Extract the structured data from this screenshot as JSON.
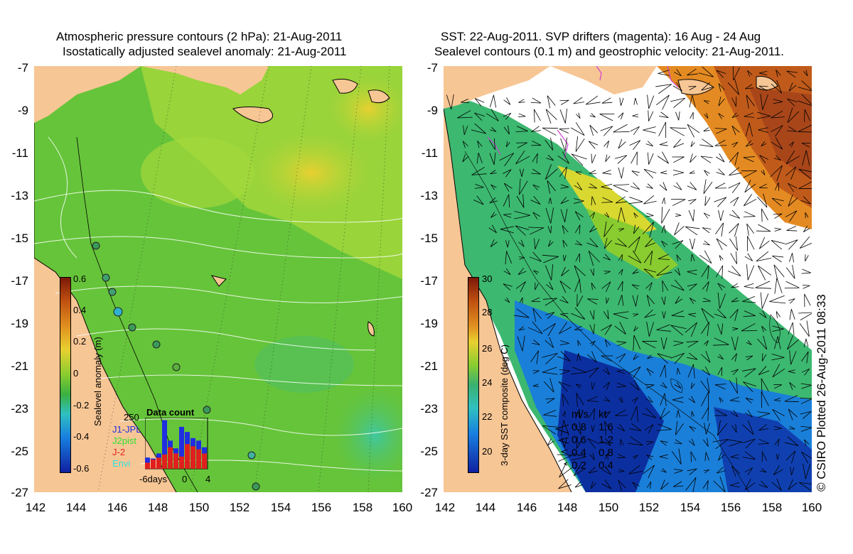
{
  "left_panel": {
    "title_line1": "Atmospheric pressure contours (2 hPa): 21-Aug-2011",
    "title_line2": "Isostatically adjusted sealevel anomaly: 21-Aug-2011",
    "colorbar": {
      "label": "Sealevel anomaly (m)",
      "ticks": [
        "0.6",
        "0.4",
        "0.2",
        "0",
        "-0.2",
        "-0.4",
        "-0.6"
      ]
    },
    "data_count": {
      "title": "Data count",
      "ymax": "250",
      "legend": [
        {
          "name": "J1-JPL",
          "color": "#1f2ee0"
        },
        {
          "name": "J2pist",
          "color": "#2ee02e"
        },
        {
          "name": "J-2",
          "color": "#e01f1f"
        },
        {
          "name": "Envi",
          "color": "#2ee0e0"
        }
      ],
      "x_ticks": [
        "-6days",
        "0",
        "4"
      ],
      "bars_red": [
        0.12,
        0.18,
        0.22,
        0.28,
        0.42,
        0.3,
        0.24,
        0.48,
        0.44,
        0.38,
        0.3
      ],
      "bars_blue": [
        0.22,
        0.2,
        0.3,
        0.95,
        0.55,
        0.4,
        0.82,
        0.72,
        0.6,
        0.55,
        0.42
      ]
    }
  },
  "right_panel": {
    "title_line1": "SST: 22-Aug-2011. SVP drifters (magenta): 16 Aug - 24 Aug",
    "title_line2": "Sealevel contours (0.1 m) and geostrophic velocity: 21-Aug-2011.",
    "colorbar": {
      "label": "3-day SST composite (deg C)",
      "ticks": [
        "30",
        "28",
        "26",
        "24",
        "22",
        "20"
      ]
    },
    "speed_legend": {
      "header_ms": "m/s",
      "header_kt": "kt",
      "rows": [
        {
          "ms": "0.8",
          "kt": "1.6"
        },
        {
          "ms": "0.6",
          "kt": "1.2"
        },
        {
          "ms": "0.4",
          "kt": "0.8"
        },
        {
          "ms": "0.2",
          "kt": "0.4"
        }
      ]
    },
    "copyright": "© CSIRO Plotted 26-Aug-2011 08:33"
  },
  "axes": {
    "lat_ticks": [
      "-7",
      "-9",
      "-11",
      "-13",
      "-15",
      "-17",
      "-19",
      "-21",
      "-23",
      "-25",
      "-27"
    ],
    "lon_ticks": [
      "142",
      "144",
      "146",
      "148",
      "150",
      "152",
      "154",
      "156",
      "158",
      "160"
    ]
  },
  "colors": {
    "land": "#f7c695",
    "ocean_left": "#66cc33",
    "ocean_left_high": "#c8e030",
    "sst_green": "#44bb66",
    "sst_blue": "#1060d0",
    "sst_dark": "#0a2a90",
    "sst_orange": "#e08a20",
    "sst_red": "#b04a18",
    "cloud": "#ffffff"
  }
}
